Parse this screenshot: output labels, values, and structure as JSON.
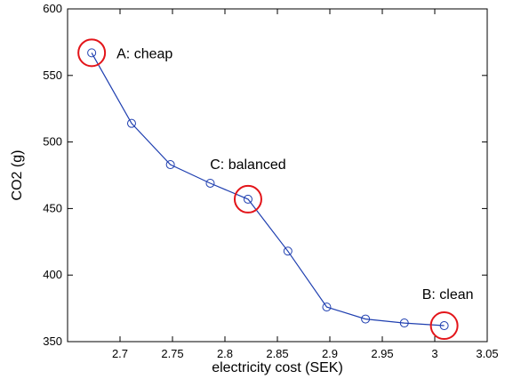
{
  "chart_data": {
    "type": "line",
    "title": "",
    "xlabel": "electricity cost (SEK)",
    "ylabel": "CO2 (g)",
    "xlim": [
      2.65,
      3.05
    ],
    "ylim": [
      350,
      600
    ],
    "xticks": [
      2.7,
      2.75,
      2.8,
      2.85,
      2.9,
      2.95,
      3,
      3.05
    ],
    "xtick_labels": [
      "2.7",
      "2.75",
      "2.8",
      "2.85",
      "2.9",
      "2.95",
      "3",
      "3.05"
    ],
    "yticks": [
      350,
      400,
      450,
      500,
      550,
      600
    ],
    "ytick_labels": [
      "350",
      "400",
      "450",
      "500",
      "550",
      "600"
    ],
    "grid": false,
    "series": [
      {
        "marker": "circle",
        "color": "#1f3fb0",
        "x": [
          2.673,
          2.711,
          2.748,
          2.786,
          2.822,
          2.86,
          2.897,
          2.934,
          2.971,
          3.009
        ],
        "y": [
          567,
          514,
          483,
          469,
          457,
          418,
          376,
          367,
          364,
          362
        ]
      }
    ],
    "annotations": [
      {
        "text": "A: cheap",
        "x": 2.673,
        "y": 567,
        "circle_color": "#e3151a"
      },
      {
        "text": "C: balanced",
        "x": 2.822,
        "y": 457,
        "circle_color": "#e3151a"
      },
      {
        "text": "B: clean",
        "x": 3.009,
        "y": 362,
        "circle_color": "#e3151a"
      }
    ]
  }
}
